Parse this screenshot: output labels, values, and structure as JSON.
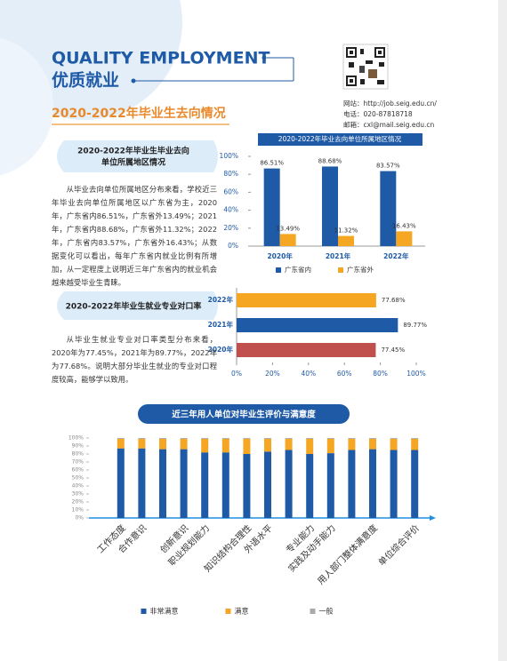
{
  "header": {
    "title_en": "QUALITY EMPLOYMENT",
    "title_cn": "优质就业",
    "section_title": "2020-2022年毕业生去向情况"
  },
  "contact": [
    "网站：http://job.seig.edu.cn/",
    "电话：020-87818718",
    "邮箱：cxl@mail.seig.edu.cn"
  ],
  "section1": {
    "title": [
      "2020-2022年毕业生毕业去向",
      "单位所属地区情况"
    ],
    "text": "从毕业去向单位所属地区分布来看，学校近三年毕业去向单位所属地区以广东省为主，2020年，广东省内86.51%，广东省外13.49%；2021年，广东省内88.68%，广东省外11.32%；2022年，广东省内83.57%，广东省外16.43%；从数据变化可以看出，每年广东省内就业比例有所增加，从一定程度上说明近三年广东省内的就业机会越来越受毕业生青睐。"
  },
  "section2": {
    "title": "2020-2022年毕业生就业专业对口率",
    "text": "从毕业生就业专业对口率类型分布来看，2020年为77.45%，2021年为89.77%，2022年为77.68%。说明大部分毕业生就业的专业对口程度较高，能够学以致用。"
  },
  "chart_data": [
    {
      "type": "bar",
      "title": "2020-2022年毕业去向单位所属地区情况",
      "categories": [
        "2020年",
        "2021年",
        "2022年"
      ],
      "series": [
        {
          "name": "广东省内",
          "color": "#1f5aa6",
          "values": [
            86.51,
            88.68,
            83.57
          ],
          "value_labels": [
            "86.51%",
            "88.68%",
            "83.57%"
          ]
        },
        {
          "name": "广东省外",
          "color": "#f5a623",
          "values": [
            13.49,
            11.32,
            16.43
          ],
          "value_labels": [
            "13.49%",
            "11.32%",
            "16.43%"
          ]
        }
      ],
      "ylim": [
        0,
        100
      ],
      "yticks": [
        {
          "value": 0,
          "label": "0%"
        },
        {
          "value": 20,
          "label": "20%"
        },
        {
          "value": 40,
          "label": "40%"
        },
        {
          "value": 60,
          "label": "60%"
        },
        {
          "value": 80,
          "label": "80%"
        },
        {
          "value": 100,
          "label": "100%"
        }
      ],
      "legend": "bottom"
    },
    {
      "type": "horizontal_bar",
      "categories": [
        "2022年",
        "2021年",
        "2020年"
      ],
      "values": [
        77.68,
        89.77,
        77.45
      ],
      "value_labels": [
        "77.68%",
        "89.77%",
        "77.45%"
      ],
      "colors": [
        "#f5a623",
        "#1f5aa6",
        "#c0504d"
      ],
      "xlim": [
        0,
        100
      ],
      "xticks": [
        {
          "value": 0,
          "label": "0%"
        },
        {
          "value": 20,
          "label": "20%"
        },
        {
          "value": 40,
          "label": "40%"
        },
        {
          "value": 60,
          "label": "60%"
        },
        {
          "value": 80,
          "label": "80%"
        },
        {
          "value": 100,
          "label": "100%"
        }
      ]
    },
    {
      "type": "stacked_bar",
      "title": "近三年用人单位对毕业生评价与满意度",
      "categories": [
        "工作态度",
        "合作意识",
        null,
        "创新意识",
        "职业规划能力",
        null,
        "知识结构合理性",
        "外语水平",
        null,
        "专业能力",
        "实践及动手能力",
        null,
        "用人部门整体满意度",
        null,
        "单位综合评价"
      ],
      "series": [
        {
          "name": "非常满意",
          "color": "#1f5aa6",
          "values": [
            87,
            87,
            86,
            86,
            82,
            82,
            80,
            83,
            85,
            80,
            81,
            85,
            86,
            85,
            85
          ]
        },
        {
          "name": "满意",
          "color": "#f5a623",
          "values": [
            12,
            12,
            13,
            13,
            17,
            17,
            19,
            16,
            14,
            19,
            18,
            14,
            13,
            14,
            14
          ]
        },
        {
          "name": "一般",
          "color": "#aaaaaa",
          "values": [
            1,
            1,
            1,
            1,
            1,
            1,
            1,
            1,
            1,
            1,
            1,
            1,
            1,
            1,
            1
          ]
        }
      ],
      "ylim": [
        0,
        100
      ],
      "yticks": [
        {
          "value": 0,
          "label": "0%"
        },
        {
          "value": 10,
          "label": "10%"
        },
        {
          "value": 20,
          "label": "20%"
        },
        {
          "value": 30,
          "label": "30%"
        },
        {
          "value": 40,
          "label": "40%"
        },
        {
          "value": 50,
          "label": "50%"
        },
        {
          "value": 60,
          "label": "60%"
        },
        {
          "value": 70,
          "label": "70%"
        },
        {
          "value": 80,
          "label": "80%"
        },
        {
          "value": 90,
          "label": "90%"
        },
        {
          "value": 100,
          "label": "100%"
        }
      ],
      "legend": "bottom"
    }
  ]
}
